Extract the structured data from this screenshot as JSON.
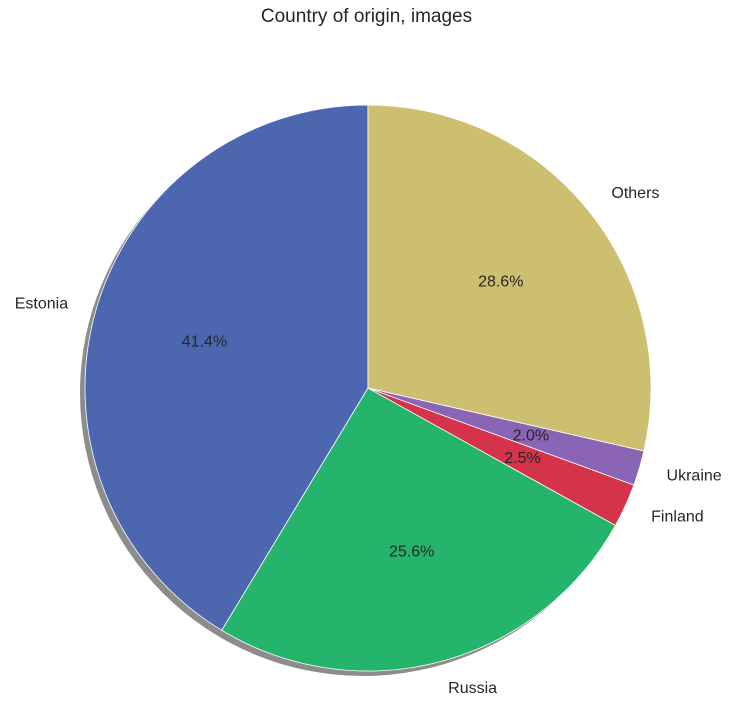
{
  "chart_data": {
    "type": "pie",
    "title": "Country of origin, images",
    "categories": [
      "Estonia",
      "Russia",
      "Finland",
      "Ukraine",
      "Others"
    ],
    "values": [
      41.4,
      25.6,
      2.5,
      2.0,
      28.6
    ],
    "percent_labels": [
      "41.4%",
      "25.6%",
      "2.5%",
      "2.0%",
      "28.6%"
    ],
    "colors": [
      "#4c67b0",
      "#25b46b",
      "#d5334a",
      "#8a64b5",
      "#ccbf6f"
    ],
    "start_angle_deg": 90,
    "direction": "counterclockwise",
    "shadow": true,
    "legend": "none"
  }
}
